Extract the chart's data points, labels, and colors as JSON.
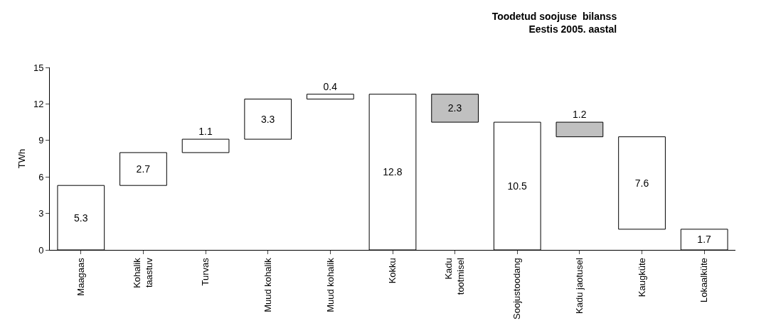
{
  "chart_data": {
    "type": "bar",
    "title": "Toodetud soojuse  bilanss\nEestis 2005. aastal",
    "ylabel": "TWh",
    "categories": [
      "Maagaas",
      "Kohalik\ntaastuv",
      "Turvas",
      "Muud kohalik",
      "Muud kohalik",
      "Kokku",
      "Kadu\ntootmisel",
      "Soojustoodang",
      "Kadu jaotusel",
      "Kaugküte",
      "Lokaalküte"
    ],
    "values": [
      5.3,
      2.7,
      1.1,
      3.3,
      0.4,
      12.8,
      2.3,
      10.5,
      1.2,
      7.6,
      1.7
    ],
    "base": [
      0,
      5.3,
      8.0,
      9.1,
      12.4,
      0,
      10.5,
      0,
      9.3,
      1.7,
      0
    ],
    "colors": [
      "#ffffff",
      "#ffffff",
      "#ffffff",
      "#ffffff",
      "#ffffff",
      "#ffffff",
      "#c0c0c0",
      "#ffffff",
      "#c0c0c0",
      "#ffffff",
      "#ffffff"
    ],
    "ylim": [
      0,
      15
    ],
    "yticks": [
      0,
      3,
      6,
      9,
      12,
      15
    ],
    "data_labels": true,
    "grid": false,
    "legend": false
  }
}
